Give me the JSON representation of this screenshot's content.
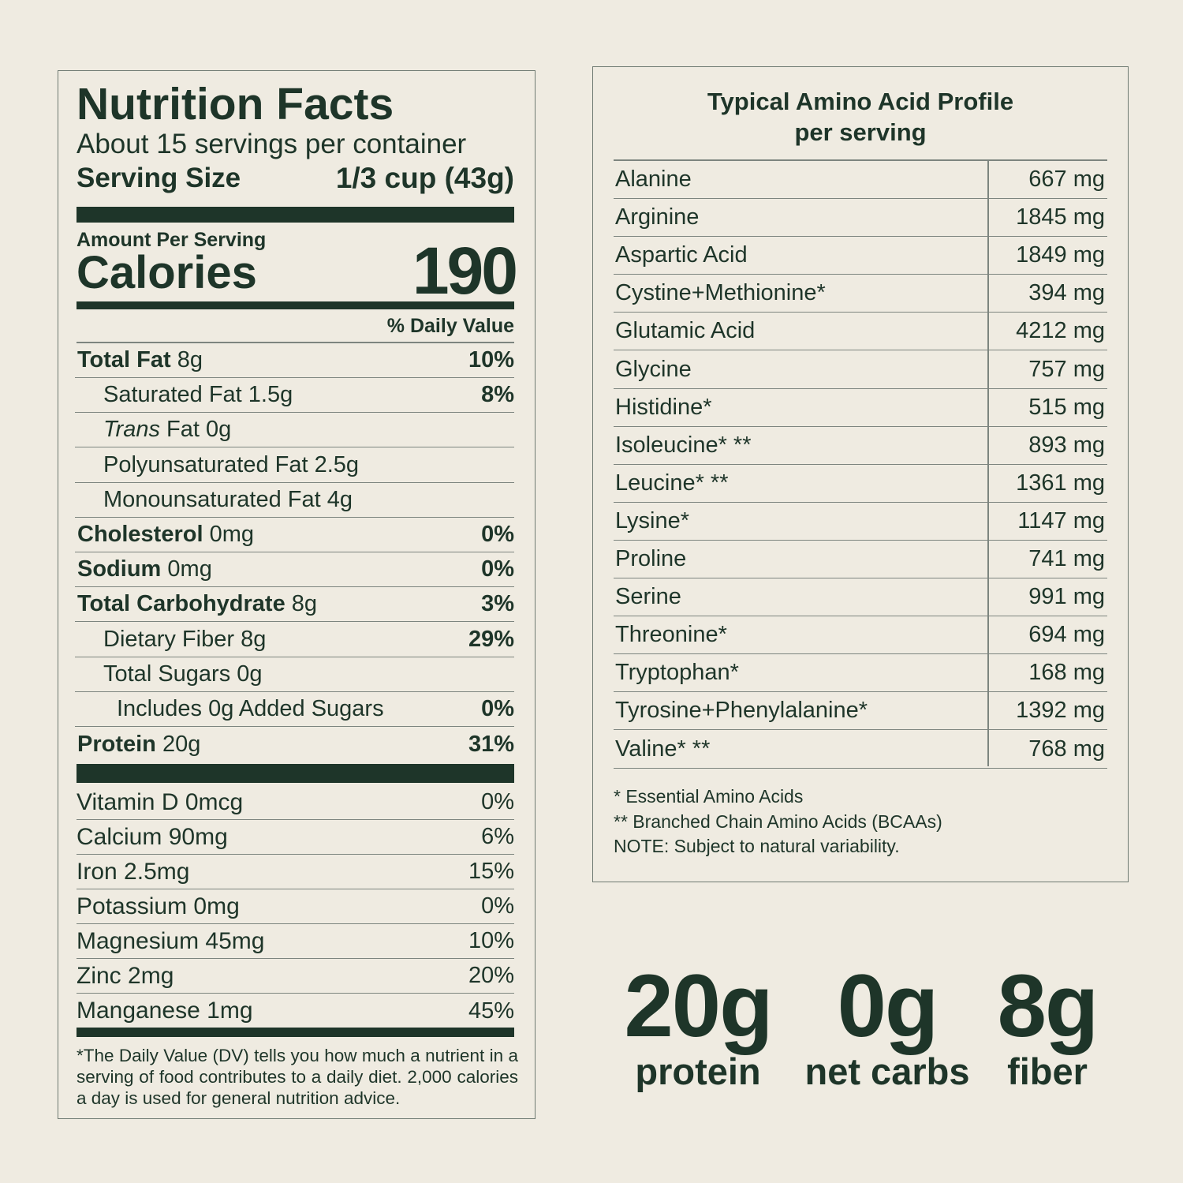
{
  "nutrition_facts": {
    "title": "Nutrition Facts",
    "servings": "About 15 servings per container",
    "serving_size_label": "Serving Size",
    "serving_size": "1/3 cup (43g)",
    "amount_per_serving": "Amount Per Serving",
    "calories_label": "Calories",
    "calories": 190,
    "daily_value_header": "% Daily Value",
    "rows": [
      {
        "name": "Total Fat",
        "amount": "8g",
        "dv": "10%",
        "indent": 0,
        "bold": true
      },
      {
        "name": "Saturated Fat",
        "amount": "1.5g",
        "dv": "8%",
        "indent": 1,
        "bold": false
      },
      {
        "name_italic": "Trans",
        "name": "Fat",
        "amount": "0g",
        "indent": 1,
        "bold": false
      },
      {
        "name": "Polyunsaturated Fat",
        "amount": "2.5g",
        "indent": 1,
        "bold": false
      },
      {
        "name": "Monounsaturated Fat",
        "amount": "4g",
        "indent": 1,
        "bold": false
      },
      {
        "name": "Cholesterol",
        "amount": "0mg",
        "dv": "0%",
        "indent": 0,
        "bold": true
      },
      {
        "name": "Sodium",
        "amount": "0mg",
        "dv": "0%",
        "indent": 0,
        "bold": true
      },
      {
        "name": "Total Carbohydrate",
        "amount": "8g",
        "dv": "3%",
        "indent": 0,
        "bold": true
      },
      {
        "name": "Dietary Fiber",
        "amount": "8g",
        "dv": "29%",
        "indent": 1,
        "bold": false
      },
      {
        "name": "Total Sugars",
        "amount": "0g",
        "indent": 1,
        "bold": false
      },
      {
        "name": "Includes 0g Added Sugars",
        "dv": "0%",
        "indent": 2,
        "bold": false
      },
      {
        "name": "Protein",
        "amount": "20g",
        "dv": "31%",
        "indent": 0,
        "bold": true
      }
    ],
    "vitamins": [
      {
        "name": "Vitamin D",
        "amount": "0mcg",
        "dv": "0%"
      },
      {
        "name": "Calcium",
        "amount": "90mg",
        "dv": "6%"
      },
      {
        "name": "Iron",
        "amount": "2.5mg",
        "dv": "15%"
      },
      {
        "name": "Potassium",
        "amount": "0mg",
        "dv": "0%"
      },
      {
        "name": "Magnesium",
        "amount": "45mg",
        "dv": "10%"
      },
      {
        "name": "Zinc",
        "amount": "2mg",
        "dv": "20%"
      },
      {
        "name": "Manganese",
        "amount": "1mg",
        "dv": "45%"
      }
    ],
    "footnote": "*The Daily Value (DV) tells you how much a nutrient in a serving of food contributes to a daily diet. 2,000 calories a day is used for general nutrition advice."
  },
  "amino_acids": {
    "title": "Typical Amino Acid Profile",
    "subtitle": "per serving",
    "rows": [
      {
        "name": "Alanine",
        "amount": "667 mg"
      },
      {
        "name": "Arginine",
        "amount": "1845 mg"
      },
      {
        "name": "Aspartic Acid",
        "amount": "1849 mg"
      },
      {
        "name": "Cystine+Methionine*",
        "amount": "394 mg"
      },
      {
        "name": "Glutamic Acid",
        "amount": "4212 mg"
      },
      {
        "name": "Glycine",
        "amount": "757 mg"
      },
      {
        "name": "Histidine*",
        "amount": "515 mg"
      },
      {
        "name": "Isoleucine* **",
        "amount": "893 mg"
      },
      {
        "name": "Leucine* **",
        "amount": "1361 mg"
      },
      {
        "name": "Lysine*",
        "amount": "1147 mg"
      },
      {
        "name": "Proline",
        "amount": "741 mg"
      },
      {
        "name": "Serine",
        "amount": "991 mg"
      },
      {
        "name": "Threonine*",
        "amount": "694 mg"
      },
      {
        "name": "Tryptophan*",
        "amount": "168 mg"
      },
      {
        "name": "Tyrosine+Phenylalanine*",
        "amount": "1392 mg"
      },
      {
        "name": "Valine* **",
        "amount": "768 mg"
      }
    ],
    "notes": [
      "* Essential Amino Acids",
      "** Branched Chain Amino Acids (BCAAs)",
      "NOTE: Subject to natural variability."
    ]
  },
  "highlights": [
    {
      "value": "20g",
      "label": "protein"
    },
    {
      "value": "0g",
      "label": "net carbs"
    },
    {
      "value": "8g",
      "label": "fiber"
    }
  ]
}
